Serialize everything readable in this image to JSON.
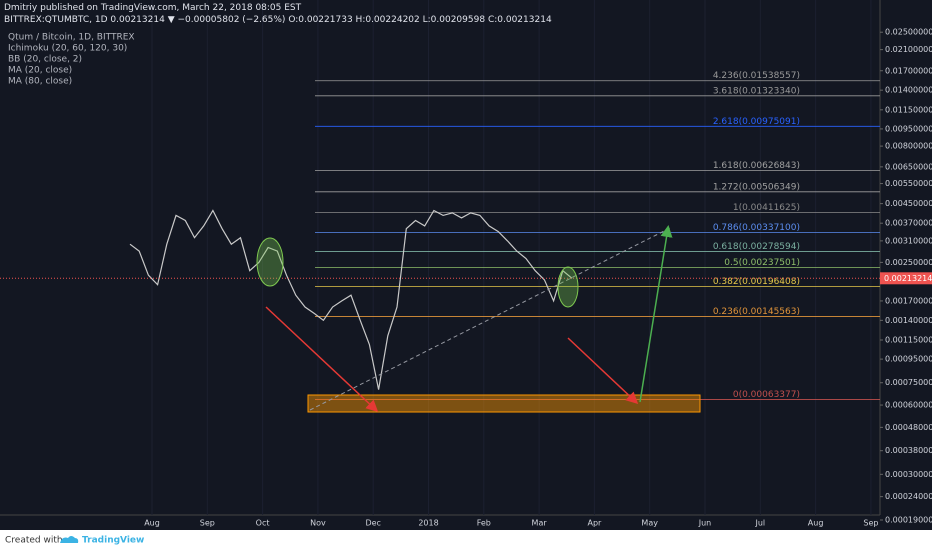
{
  "header": {
    "author": "Dmitriy",
    "published": "published on TradingView.com, March 22, 2018 08:05 EST",
    "symbol": "BITTREX:QTUMBTC, 1D",
    "last": "0.00213214",
    "change": "▼ −0.00005802 (−2.65%)",
    "open": "O:0.00221733",
    "high": "H:0.00224202",
    "low": "L:0.00209598",
    "close": "C:0.00213214"
  },
  "legend": [
    "Qtum / Bitcoin, 1D, BITTREX",
    "Ichimoku (20, 60, 120, 30)",
    "BB (20, close, 2)",
    "MA (20, close)",
    "MA (80, close)"
  ],
  "footer": {
    "created": "Created with",
    "brand": "TradingView"
  },
  "chart_data": {
    "type": "line",
    "log_scale": true,
    "color": "#c9c9c9",
    "ylim": [
      0.00019,
      0.0345
    ],
    "yticks": [
      {
        "value": 0.025,
        "label": "0.02500000"
      },
      {
        "value": 0.021,
        "label": "0.02100000"
      },
      {
        "value": 0.017,
        "label": "0.01700000"
      },
      {
        "value": 0.014,
        "label": "0.01400000"
      },
      {
        "value": 0.0115,
        "label": "0.01150000"
      },
      {
        "value": 0.0095,
        "label": "0.00950000"
      },
      {
        "value": 0.008,
        "label": "0.00800000"
      },
      {
        "value": 0.0065,
        "label": "0.00650000"
      },
      {
        "value": 0.0055,
        "label": "0.00550000"
      },
      {
        "value": 0.0045,
        "label": "0.00450000"
      },
      {
        "value": 0.0037,
        "label": "0.00370000"
      },
      {
        "value": 0.0031,
        "label": "0.00310000"
      },
      {
        "value": 0.0025,
        "label": "0.00250000"
      },
      {
        "value": 0.0017,
        "label": "0.00170000"
      },
      {
        "value": 0.0014,
        "label": "0.00140000"
      },
      {
        "value": 0.00115,
        "label": "0.00115000"
      },
      {
        "value": 0.00095,
        "label": "0.00095000"
      },
      {
        "value": 0.00075,
        "label": "0.00075000"
      },
      {
        "value": 0.0006,
        "label": "0.00060000"
      },
      {
        "value": 0.00048,
        "label": "0.00048000"
      },
      {
        "value": 0.00038,
        "label": "0.00038000"
      },
      {
        "value": 0.0003,
        "label": "0.00030000"
      },
      {
        "value": 0.00024,
        "label": "0.00024000"
      },
      {
        "value": 0.00019,
        "label": "0.00019000"
      }
    ],
    "current_price": 0.00213214,
    "time_labels": [
      "Aug",
      "Sep",
      "Oct",
      "Nov",
      "Dec",
      "2018",
      "Feb",
      "Mar",
      "Apr",
      "May",
      "Jun",
      "Jul",
      "Aug",
      "Sep"
    ],
    "values": [
      0.003,
      0.0028,
      0.0022,
      0.002,
      0.003,
      0.004,
      0.0038,
      0.0032,
      0.0036,
      0.0042,
      0.0035,
      0.003,
      0.0032,
      0.0023,
      0.0025,
      0.0029,
      0.0028,
      0.0022,
      0.0018,
      0.0016,
      0.0015,
      0.0014,
      0.0016,
      0.0017,
      0.0018,
      0.0014,
      0.0011,
      0.0007,
      0.0012,
      0.0016,
      0.0035,
      0.0038,
      0.0036,
      0.0042,
      0.004,
      0.0041,
      0.0039,
      0.0041,
      0.004,
      0.0036,
      0.0034,
      0.0031,
      0.0028,
      0.0026,
      0.0023,
      0.0021,
      0.0017,
      0.0023,
      0.00213214
    ],
    "fib_levels": [
      {
        "label": "4.236(0.01538557)",
        "value": 0.01538557,
        "color": "#9a9a9a"
      },
      {
        "label": "3.618(0.01323340)",
        "value": 0.0132334,
        "color": "#9a9a9a"
      },
      {
        "label": "2.618(0.00975091)",
        "value": 0.00975091,
        "color": "#2962ff"
      },
      {
        "label": "1.618(0.00626843)",
        "value": 0.00626843,
        "color": "#a0a0a0"
      },
      {
        "label": "1.272(0.00506349)",
        "value": 0.00506349,
        "color": "#a0a0a0"
      },
      {
        "label": "1(0.00411625)",
        "value": 0.00411625,
        "color": "#8a8a8a"
      },
      {
        "label": "0.786(0.00337100)",
        "value": 0.003371,
        "color": "#5b8def"
      },
      {
        "label": "0.618(0.00278594)",
        "value": 0.00278594,
        "color": "#7bb0a0"
      },
      {
        "label": "0.5(0.00237501)",
        "value": 0.00237501,
        "color": "#8fbf6a"
      },
      {
        "label": "0.382(0.00196408)",
        "value": 0.00196408,
        "color": "#e6c84a"
      },
      {
        "label": "0.236(0.00145563)",
        "value": 0.00145563,
        "color": "#e0943a"
      },
      {
        "label": "0(0.00063377)",
        "value": 0.00063377,
        "color": "#c0504d"
      }
    ]
  }
}
